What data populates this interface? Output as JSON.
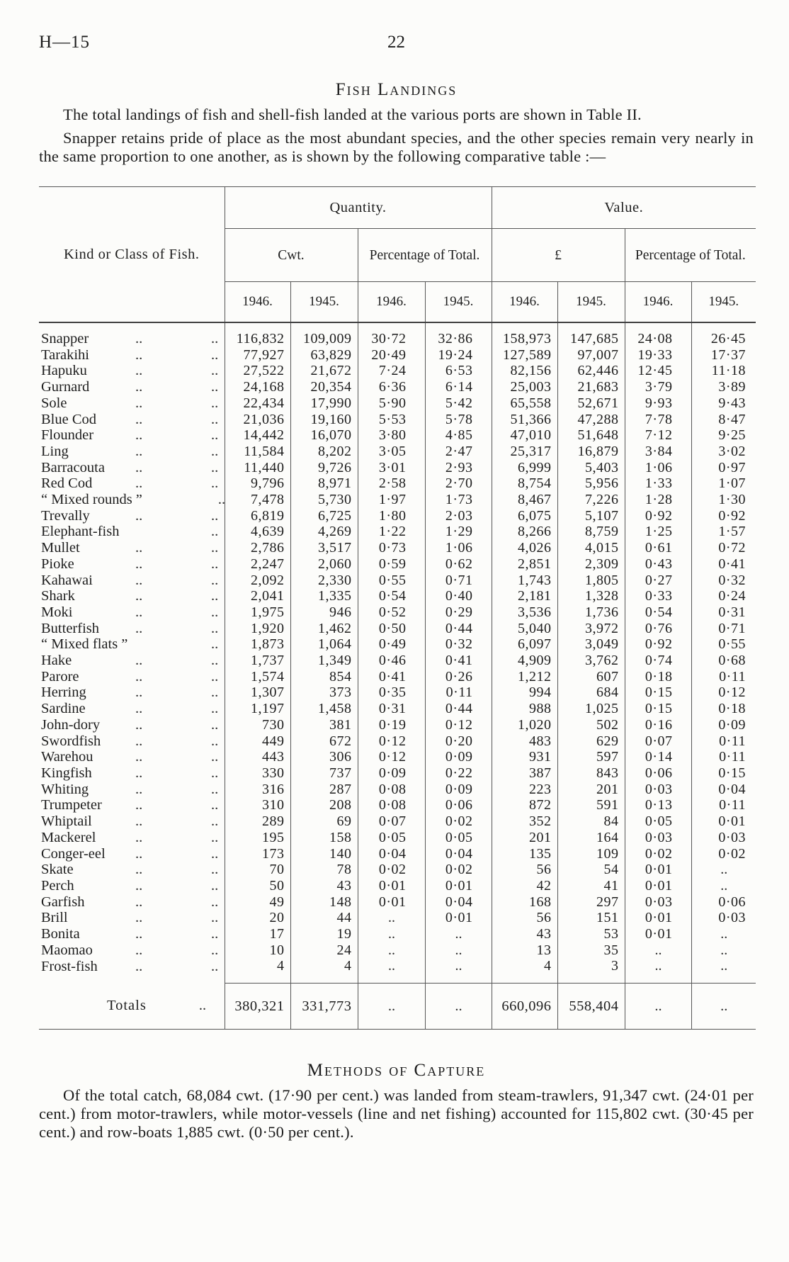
{
  "page": {
    "doc_ref": "H—15",
    "page_number": "22"
  },
  "fish_landings": {
    "title": "Fish Landings",
    "para1": "The total landings of fish and shell-fish landed at the various ports are shown in Table II.",
    "para2": "Snapper retains pride of place as the most abundant species, and the other species remain very nearly in the same proportion to one another, as is shown by the following comparative table :—"
  },
  "table": {
    "col_head": "Kind or Class of Fish.",
    "quantity_label": "Quantity.",
    "value_label": "Value.",
    "cwt_label": "Cwt.",
    "pct_label": "Percentage of Total.",
    "pound_label": "£",
    "years": [
      "1946.",
      "1945."
    ],
    "rows": [
      {
        "name": "Snapper",
        "values": [
          "116,832",
          "109,009",
          "30·72",
          "32·86",
          "158,973",
          "147,685",
          "24·08",
          "26·45"
        ]
      },
      {
        "name": "Tarakihi",
        "values": [
          "77,927",
          "63,829",
          "20·49",
          "19·24",
          "127,589",
          "97,007",
          "19·33",
          "17·37"
        ]
      },
      {
        "name": "Hapuku",
        "values": [
          "27,522",
          "21,672",
          "7·24",
          "6·53",
          "82,156",
          "62,446",
          "12·45",
          "11·18"
        ]
      },
      {
        "name": "Gurnard",
        "values": [
          "24,168",
          "20,354",
          "6·36",
          "6·14",
          "25,003",
          "21,683",
          "3·79",
          "3·89"
        ]
      },
      {
        "name": "Sole",
        "values": [
          "22,434",
          "17,990",
          "5·90",
          "5·42",
          "65,558",
          "52,671",
          "9·93",
          "9·43"
        ]
      },
      {
        "name": "Blue Cod",
        "values": [
          "21,036",
          "19,160",
          "5·53",
          "5·78",
          "51,366",
          "47,288",
          "7·78",
          "8·47"
        ]
      },
      {
        "name": "Flounder",
        "values": [
          "14,442",
          "16,070",
          "3·80",
          "4·85",
          "47,010",
          "51,648",
          "7·12",
          "9·25"
        ]
      },
      {
        "name": "Ling",
        "values": [
          "11,584",
          "8,202",
          "3·05",
          "2·47",
          "25,317",
          "16,879",
          "3·84",
          "3·02"
        ]
      },
      {
        "name": "Barracouta",
        "values": [
          "11,440",
          "9,726",
          "3·01",
          "2·93",
          "6,999",
          "5,403",
          "1·06",
          "0·97"
        ]
      },
      {
        "name": "Red Cod",
        "values": [
          "9,796",
          "8,971",
          "2·58",
          "2·70",
          "8,754",
          "5,956",
          "1·33",
          "1·07"
        ]
      },
      {
        "name": "“ Mixed rounds ”",
        "values": [
          "7,478",
          "5,730",
          "1·97",
          "1·73",
          "8,467",
          "7,226",
          "1·28",
          "1·30"
        ]
      },
      {
        "name": "Trevally",
        "values": [
          "6,819",
          "6,725",
          "1·80",
          "2·03",
          "6,075",
          "5,107",
          "0·92",
          "0·92"
        ]
      },
      {
        "name": "Elephant-fish",
        "values": [
          "4,639",
          "4,269",
          "1·22",
          "1·29",
          "8,266",
          "8,759",
          "1·25",
          "1·57"
        ]
      },
      {
        "name": "Mullet",
        "values": [
          "2,786",
          "3,517",
          "0·73",
          "1·06",
          "4,026",
          "4,015",
          "0·61",
          "0·72"
        ]
      },
      {
        "name": "Pioke",
        "values": [
          "2,247",
          "2,060",
          "0·59",
          "0·62",
          "2,851",
          "2,309",
          "0·43",
          "0·41"
        ]
      },
      {
        "name": "Kahawai",
        "values": [
          "2,092",
          "2,330",
          "0·55",
          "0·71",
          "1,743",
          "1,805",
          "0·27",
          "0·32"
        ]
      },
      {
        "name": "Shark",
        "values": [
          "2,041",
          "1,335",
          "0·54",
          "0·40",
          "2,181",
          "1,328",
          "0·33",
          "0·24"
        ]
      },
      {
        "name": "Moki",
        "values": [
          "1,975",
          "946",
          "0·52",
          "0·29",
          "3,536",
          "1,736",
          "0·54",
          "0·31"
        ]
      },
      {
        "name": "Butterfish",
        "values": [
          "1,920",
          "1,462",
          "0·50",
          "0·44",
          "5,040",
          "3,972",
          "0·76",
          "0·71"
        ]
      },
      {
        "name": "“ Mixed flats ”",
        "values": [
          "1,873",
          "1,064",
          "0·49",
          "0·32",
          "6,097",
          "3,049",
          "0·92",
          "0·55"
        ]
      },
      {
        "name": "Hake",
        "values": [
          "1,737",
          "1,349",
          "0·46",
          "0·41",
          "4,909",
          "3,762",
          "0·74",
          "0·68"
        ]
      },
      {
        "name": "Parore",
        "values": [
          "1,574",
          "854",
          "0·41",
          "0·26",
          "1,212",
          "607",
          "0·18",
          "0·11"
        ]
      },
      {
        "name": "Herring",
        "values": [
          "1,307",
          "373",
          "0·35",
          "0·11",
          "994",
          "684",
          "0·15",
          "0·12"
        ]
      },
      {
        "name": "Sardine",
        "values": [
          "1,197",
          "1,458",
          "0·31",
          "0·44",
          "988",
          "1,025",
          "0·15",
          "0·18"
        ]
      },
      {
        "name": "John-dory",
        "values": [
          "730",
          "381",
          "0·19",
          "0·12",
          "1,020",
          "502",
          "0·16",
          "0·09"
        ]
      },
      {
        "name": "Swordfish",
        "values": [
          "449",
          "672",
          "0·12",
          "0·20",
          "483",
          "629",
          "0·07",
          "0·11"
        ]
      },
      {
        "name": "Warehou",
        "values": [
          "443",
          "306",
          "0·12",
          "0·09",
          "931",
          "597",
          "0·14",
          "0·11"
        ]
      },
      {
        "name": "Kingfish",
        "values": [
          "330",
          "737",
          "0·09",
          "0·22",
          "387",
          "843",
          "0·06",
          "0·15"
        ]
      },
      {
        "name": "Whiting",
        "values": [
          "316",
          "287",
          "0·08",
          "0·09",
          "223",
          "201",
          "0·03",
          "0·04"
        ]
      },
      {
        "name": "Trumpeter",
        "values": [
          "310",
          "208",
          "0·08",
          "0·06",
          "872",
          "591",
          "0·13",
          "0·11"
        ]
      },
      {
        "name": "Whiptail",
        "values": [
          "289",
          "69",
          "0·07",
          "0·02",
          "352",
          "84",
          "0·05",
          "0·01"
        ]
      },
      {
        "name": "Mackerel",
        "values": [
          "195",
          "158",
          "0·05",
          "0·05",
          "201",
          "164",
          "0·03",
          "0·03"
        ]
      },
      {
        "name": "Conger-eel",
        "values": [
          "173",
          "140",
          "0·04",
          "0·04",
          "135",
          "109",
          "0·02",
          "0·02"
        ]
      },
      {
        "name": "Skate",
        "values": [
          "70",
          "78",
          "0·02",
          "0·02",
          "56",
          "54",
          "0·01",
          ".."
        ]
      },
      {
        "name": "Perch",
        "values": [
          "50",
          "43",
          "0·01",
          "0·01",
          "42",
          "41",
          "0·01",
          ".."
        ]
      },
      {
        "name": "Garfish",
        "values": [
          "49",
          "148",
          "0·01",
          "0·04",
          "168",
          "297",
          "0·03",
          "0·06"
        ]
      },
      {
        "name": "Brill",
        "values": [
          "20",
          "44",
          "..",
          "0·01",
          "56",
          "151",
          "0·01",
          "0·03"
        ]
      },
      {
        "name": "Bonita",
        "values": [
          "17",
          "19",
          "..",
          "..",
          "43",
          "53",
          "0·01",
          ".."
        ]
      },
      {
        "name": "Maomao",
        "values": [
          "10",
          "24",
          "..",
          "..",
          "13",
          "35",
          "..",
          ".."
        ]
      },
      {
        "name": "Frost-fish",
        "values": [
          "4",
          "4",
          "..",
          "..",
          "4",
          "3",
          "..",
          ".."
        ]
      }
    ],
    "totals": {
      "label": "Totals",
      "values": [
        "380,321",
        "331,773",
        "..",
        "..",
        "660,096",
        "558,404",
        "..",
        ".."
      ]
    }
  },
  "methods": {
    "title": "Methods of Capture",
    "para": "Of the total catch, 68,084 cwt. (17·90 per cent.) was landed from steam-trawlers, 91,347 cwt. (24·01 per cent.) from motor-trawlers, while motor-vessels (line and net fishing) accounted for 115,802 cwt. (30·45 per cent.) and row-boats 1,885 cwt. (0·50 per cent.)."
  }
}
